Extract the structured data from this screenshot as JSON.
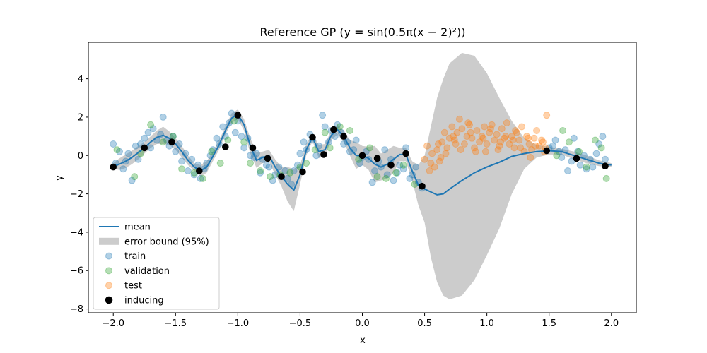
{
  "chart_data": {
    "type": "line",
    "title": "Reference GP (y = sin(0.5π(x − 2)²))",
    "xlabel": "x",
    "ylabel": "y",
    "xlim": [
      -2.2,
      2.2
    ],
    "ylim": [
      -8.2,
      5.9
    ],
    "xticks": [
      -2.0,
      -1.5,
      -1.0,
      -0.5,
      0.0,
      0.5,
      1.0,
      1.5,
      2.0
    ],
    "xtick_labels": [
      "−2.0",
      "−1.5",
      "−1.0",
      "−0.5",
      "0.0",
      "0.5",
      "1.0",
      "1.5",
      "2.0"
    ],
    "yticks": [
      -8,
      -6,
      -4,
      -2,
      0,
      2,
      4
    ],
    "ytick_labels": [
      "−8",
      "−6",
      "−4",
      "−2",
      "0",
      "2",
      "4"
    ],
    "legend_position": "lower-left",
    "colors": {
      "mean": "#1f77b4",
      "band": "#cccccc",
      "train": "#1f77b4",
      "validation": "#2ca02c",
      "test": "#ff7f0e",
      "inducing": "#000000"
    },
    "legend": [
      {
        "label": "mean",
        "kind": "line"
      },
      {
        "label": "error bound (95%)",
        "kind": "patch"
      },
      {
        "label": "train",
        "kind": "marker",
        "series": "train"
      },
      {
        "label": "validation",
        "kind": "marker",
        "series": "validation"
      },
      {
        "label": "test",
        "kind": "marker",
        "series": "test"
      },
      {
        "label": "inducing",
        "kind": "marker",
        "series": "inducing"
      }
    ],
    "mean_curve": {
      "name": "mean",
      "x": [
        -2.0,
        -1.95,
        -1.9,
        -1.85,
        -1.8,
        -1.75,
        -1.7,
        -1.65,
        -1.6,
        -1.55,
        -1.5,
        -1.45,
        -1.4,
        -1.35,
        -1.3,
        -1.25,
        -1.2,
        -1.15,
        -1.1,
        -1.05,
        -1.0,
        -0.95,
        -0.9,
        -0.85,
        -0.8,
        -0.75,
        -0.7,
        -0.65,
        -0.6,
        -0.55,
        -0.5,
        -0.45,
        -0.4,
        -0.35,
        -0.3,
        -0.25,
        -0.2,
        -0.15,
        -0.1,
        -0.05,
        0.0,
        0.05,
        0.1,
        0.15,
        0.2,
        0.25,
        0.3,
        0.35,
        0.4,
        0.45,
        0.5,
        0.55,
        0.6,
        0.65,
        0.7,
        0.8,
        0.9,
        1.0,
        1.1,
        1.2,
        1.3,
        1.4,
        1.5,
        1.6,
        1.7,
        1.8,
        1.9,
        2.0
      ],
      "y": [
        -0.55,
        -0.45,
        -0.3,
        -0.1,
        0.15,
        0.4,
        0.7,
        0.95,
        1.05,
        0.9,
        0.6,
        0.2,
        -0.25,
        -0.6,
        -0.8,
        -0.6,
        -0.05,
        0.55,
        1.3,
        1.95,
        2.15,
        1.6,
        0.5,
        -0.25,
        -0.1,
        0.0,
        -0.6,
        -1.1,
        -1.5,
        -1.8,
        -1.0,
        0.3,
        0.95,
        0.2,
        0.3,
        1.05,
        1.35,
        1.0,
        0.4,
        0.0,
        0.0,
        -0.15,
        -0.45,
        -0.6,
        -0.45,
        -0.2,
        0.05,
        0.05,
        -0.8,
        -1.55,
        -1.75,
        -1.9,
        -2.05,
        -2.0,
        -1.75,
        -1.3,
        -0.9,
        -0.6,
        -0.35,
        -0.05,
        0.1,
        0.2,
        0.25,
        0.2,
        0.0,
        -0.2,
        -0.4,
        -0.5
      ]
    },
    "error_band": {
      "name": "error bound (95%)",
      "x": [
        -2.0,
        -1.95,
        -1.9,
        -1.85,
        -1.8,
        -1.75,
        -1.7,
        -1.65,
        -1.6,
        -1.55,
        -1.5,
        -1.45,
        -1.4,
        -1.35,
        -1.3,
        -1.25,
        -1.2,
        -1.15,
        -1.1,
        -1.05,
        -1.0,
        -0.95,
        -0.9,
        -0.85,
        -0.8,
        -0.75,
        -0.7,
        -0.65,
        -0.6,
        -0.55,
        -0.5,
        -0.45,
        -0.4,
        -0.35,
        -0.3,
        -0.25,
        -0.2,
        -0.15,
        -0.1,
        -0.05,
        0.0,
        0.05,
        0.1,
        0.15,
        0.2,
        0.25,
        0.3,
        0.35,
        0.4,
        0.45,
        0.5,
        0.55,
        0.6,
        0.65,
        0.7,
        0.8,
        0.9,
        1.0,
        1.1,
        1.2,
        1.3,
        1.4,
        1.5,
        1.6,
        1.7,
        1.8,
        1.9,
        2.0
      ],
      "upper": [
        -0.4,
        -0.15,
        0.05,
        0.25,
        0.5,
        0.7,
        1.0,
        1.3,
        1.5,
        1.25,
        0.9,
        0.5,
        0.0,
        -0.4,
        -0.5,
        -0.3,
        0.2,
        0.8,
        1.5,
        2.2,
        2.4,
        1.9,
        0.9,
        0.15,
        0.2,
        0.3,
        -0.2,
        -0.6,
        -0.6,
        -0.7,
        -0.5,
        0.6,
        1.15,
        0.55,
        0.6,
        1.3,
        1.6,
        1.3,
        0.8,
        0.7,
        0.5,
        0.45,
        0.5,
        0.1,
        0.3,
        0.5,
        0.4,
        0.4,
        -0.3,
        -0.5,
        0.0,
        1.5,
        3.0,
        4.0,
        4.8,
        5.35,
        5.2,
        4.3,
        3.0,
        1.8,
        0.9,
        0.55,
        0.45,
        0.35,
        0.2,
        0.0,
        -0.25,
        -0.4
      ],
      "lower": [
        -0.7,
        -0.75,
        -0.65,
        -0.45,
        -0.2,
        0.1,
        0.4,
        0.6,
        0.6,
        0.55,
        0.3,
        -0.1,
        -0.5,
        -0.8,
        -1.1,
        -0.9,
        -0.3,
        0.3,
        1.1,
        1.7,
        1.9,
        1.3,
        0.1,
        -0.65,
        -0.4,
        -0.3,
        -1.0,
        -1.6,
        -2.4,
        -2.9,
        -1.5,
        0.0,
        0.75,
        -0.15,
        0.0,
        0.8,
        1.1,
        0.7,
        0.0,
        -0.7,
        -0.5,
        -0.75,
        -1.4,
        -1.3,
        -1.2,
        -0.9,
        -0.3,
        -0.3,
        -1.3,
        -2.6,
        -3.5,
        -5.3,
        -6.6,
        -7.3,
        -7.5,
        -7.3,
        -6.5,
        -5.2,
        -3.8,
        -2.0,
        -0.7,
        -0.1,
        0.05,
        0.05,
        -0.2,
        -0.4,
        -0.55,
        -0.6
      ]
    },
    "series": [
      {
        "name": "inducing",
        "x": [
          -2.0,
          -1.75,
          -1.53,
          -1.31,
          -1.1,
          -1.0,
          -0.88,
          -0.76,
          -0.65,
          -0.48,
          -0.4,
          -0.31,
          -0.23,
          -0.15,
          0.0,
          0.12,
          0.23,
          0.35,
          0.48,
          1.48,
          1.72,
          1.95
        ],
        "y": [
          -0.6,
          0.4,
          0.7,
          -0.8,
          0.45,
          2.1,
          0.4,
          -0.15,
          -1.1,
          -0.85,
          0.95,
          0.05,
          1.35,
          1.0,
          0.0,
          -0.15,
          -0.5,
          0.1,
          -1.6,
          0.25,
          -0.15,
          -0.55
        ]
      },
      {
        "name": "train",
        "x": [
          -2.0,
          -1.98,
          -1.95,
          -1.92,
          -1.9,
          -1.88,
          -1.85,
          -1.82,
          -1.8,
          -1.78,
          -1.75,
          -1.72,
          -1.7,
          -1.68,
          -1.65,
          -1.62,
          -1.6,
          -1.57,
          -1.55,
          -1.52,
          -1.5,
          -1.47,
          -1.45,
          -1.42,
          -1.4,
          -1.37,
          -1.35,
          -1.32,
          -1.3,
          -1.27,
          -1.25,
          -1.22,
          -1.2,
          -1.17,
          -1.15,
          -1.12,
          -1.1,
          -1.07,
          -1.05,
          -1.02,
          -1.0,
          -0.97,
          -0.95,
          -0.92,
          -0.9,
          -0.87,
          -0.85,
          -0.82,
          -0.8,
          -0.77,
          -0.75,
          -0.72,
          -0.7,
          -0.67,
          -0.65,
          -0.62,
          -0.6,
          -0.57,
          -0.55,
          -0.52,
          -0.5,
          -0.47,
          -0.45,
          -0.42,
          -0.4,
          -0.37,
          -0.35,
          -0.32,
          -0.3,
          -0.27,
          -0.25,
          -0.22,
          -0.2,
          -0.17,
          -0.15,
          -0.12,
          -0.1,
          -0.07,
          -0.05,
          -0.02,
          0.0,
          0.03,
          0.05,
          0.08,
          0.1,
          0.13,
          0.15,
          0.18,
          0.2,
          0.23,
          0.25,
          0.28,
          0.3,
          0.33,
          0.35,
          0.38,
          0.4,
          0.43,
          0.45,
          0.48,
          1.5,
          1.53,
          1.55,
          1.58,
          1.6,
          1.63,
          1.65,
          1.68,
          1.7,
          1.73,
          1.75,
          1.78,
          1.8,
          1.83,
          1.85,
          1.88,
          1.9,
          1.93,
          1.95
        ],
        "y": [
          0.6,
          -0.4,
          0.2,
          -0.7,
          -0.3,
          0.1,
          -1.3,
          0.5,
          -0.2,
          0.6,
          0.9,
          1.2,
          0.4,
          1.4,
          0.8,
          1.1,
          2.0,
          0.8,
          0.5,
          1.0,
          0.2,
          0.6,
          -0.3,
          0.1,
          -0.8,
          -0.2,
          -1.0,
          -0.5,
          -1.2,
          -0.7,
          -0.4,
          0.0,
          0.3,
          0.9,
          0.6,
          1.5,
          1.0,
          1.7,
          2.2,
          1.2,
          1.8,
          1.0,
          0.4,
          0.9,
          0.0,
          -0.1,
          0.1,
          -0.9,
          -0.2,
          -0.5,
          -0.6,
          -1.3,
          -1.0,
          -0.6,
          -1.1,
          -0.8,
          -1.2,
          -1.5,
          -0.8,
          -0.5,
          0.1,
          0.7,
          0.3,
          1.1,
          0.8,
          0.0,
          0.5,
          2.1,
          1.5,
          0.7,
          1.3,
          1.0,
          1.6,
          1.2,
          0.6,
          0.7,
          0.2,
          0.3,
          0.8,
          -0.4,
          -0.1,
          0.2,
          -0.2,
          -1.4,
          -0.8,
          -0.3,
          -0.6,
          0.3,
          -1.0,
          -0.2,
          -1.3,
          -0.9,
          -0.5,
          -0.7,
          0.4,
          -1.2,
          -1.0,
          -0.6,
          -1.4,
          -1.7,
          0.4,
          0.5,
          0.8,
          0.2,
          -0.1,
          0.3,
          -0.8,
          -0.3,
          0.9,
          0.2,
          -0.5,
          0.0,
          -0.7,
          -0.2,
          -0.6,
          0.1,
          0.6,
          1.0,
          -0.2
        ]
      },
      {
        "name": "validation",
        "x": [
          -1.97,
          -1.83,
          -1.78,
          -1.7,
          -1.6,
          -1.52,
          -1.45,
          -1.35,
          -1.28,
          -1.21,
          -1.14,
          -1.08,
          -1.03,
          -0.95,
          -0.9,
          -0.82,
          -0.74,
          -0.66,
          -0.58,
          -0.5,
          -0.45,
          -0.38,
          -0.3,
          -0.26,
          -0.18,
          -0.1,
          -0.03,
          0.06,
          0.12,
          0.19,
          0.27,
          0.33,
          0.42,
          1.56,
          1.61,
          1.66,
          1.74,
          1.8,
          1.87,
          1.92,
          1.96
        ],
        "y": [
          0.3,
          -1.1,
          0.1,
          1.6,
          0.7,
          1.0,
          -0.7,
          -0.9,
          -1.2,
          0.2,
          -0.4,
          0.8,
          1.8,
          0.7,
          -0.4,
          -0.8,
          -1.1,
          -1.0,
          -0.9,
          -0.6,
          -0.4,
          0.3,
          1.2,
          0.4,
          1.5,
          1.3,
          -0.2,
          0.4,
          -1.1,
          -1.2,
          -0.9,
          -0.5,
          -1.5,
          0.0,
          1.3,
          0.7,
          0.2,
          -0.6,
          0.8,
          0.4,
          -1.2
        ]
      },
      {
        "name": "test",
        "x": [
          0.5,
          0.52,
          0.54,
          0.56,
          0.58,
          0.6,
          0.62,
          0.64,
          0.66,
          0.68,
          0.7,
          0.72,
          0.74,
          0.76,
          0.78,
          0.8,
          0.82,
          0.84,
          0.86,
          0.88,
          0.9,
          0.92,
          0.94,
          0.96,
          0.98,
          1.0,
          1.02,
          1.04,
          1.06,
          1.08,
          1.1,
          1.12,
          1.14,
          1.16,
          1.18,
          1.2,
          1.22,
          1.24,
          1.26,
          1.28,
          1.3,
          1.32,
          1.34,
          1.36,
          1.38,
          1.4,
          1.42,
          1.44,
          1.46,
          1.48,
          0.55,
          0.61,
          0.67,
          0.73,
          0.79,
          0.85,
          0.91,
          0.97,
          1.03,
          1.09,
          1.15,
          1.21,
          1.27,
          1.33,
          1.39,
          1.45,
          0.63,
          0.75,
          0.87,
          0.99,
          1.11,
          1.23,
          1.35,
          1.47
        ],
        "y": [
          -0.2,
          0.5,
          -0.8,
          0.1,
          -0.6,
          0.3,
          -0.3,
          0.7,
          1.2,
          0.4,
          0.9,
          1.5,
          0.8,
          1.2,
          1.9,
          1.4,
          0.6,
          1.0,
          1.6,
          0.9,
          0.4,
          1.3,
          0.7,
          1.0,
          1.5,
          0.6,
          1.2,
          1.6,
          0.8,
          1.1,
          0.5,
          1.4,
          0.9,
          1.7,
          0.6,
          1.0,
          0.4,
          1.2,
          0.8,
          1.5,
          0.2,
          1.0,
          0.6,
          0.3,
          0.9,
          1.3,
          0.5,
          0.8,
          0.2,
          2.1,
          -0.4,
          0.6,
          0.1,
          1.0,
          0.3,
          1.7,
          0.2,
          0.9,
          1.4,
          0.3,
          1.0,
          0.8,
          0.4,
          0.9,
          0.5,
          0.7,
          -0.1,
          0.6,
          1.2,
          0.2,
          0.7,
          1.3,
          -0.1,
          0.4
        ]
      }
    ]
  }
}
